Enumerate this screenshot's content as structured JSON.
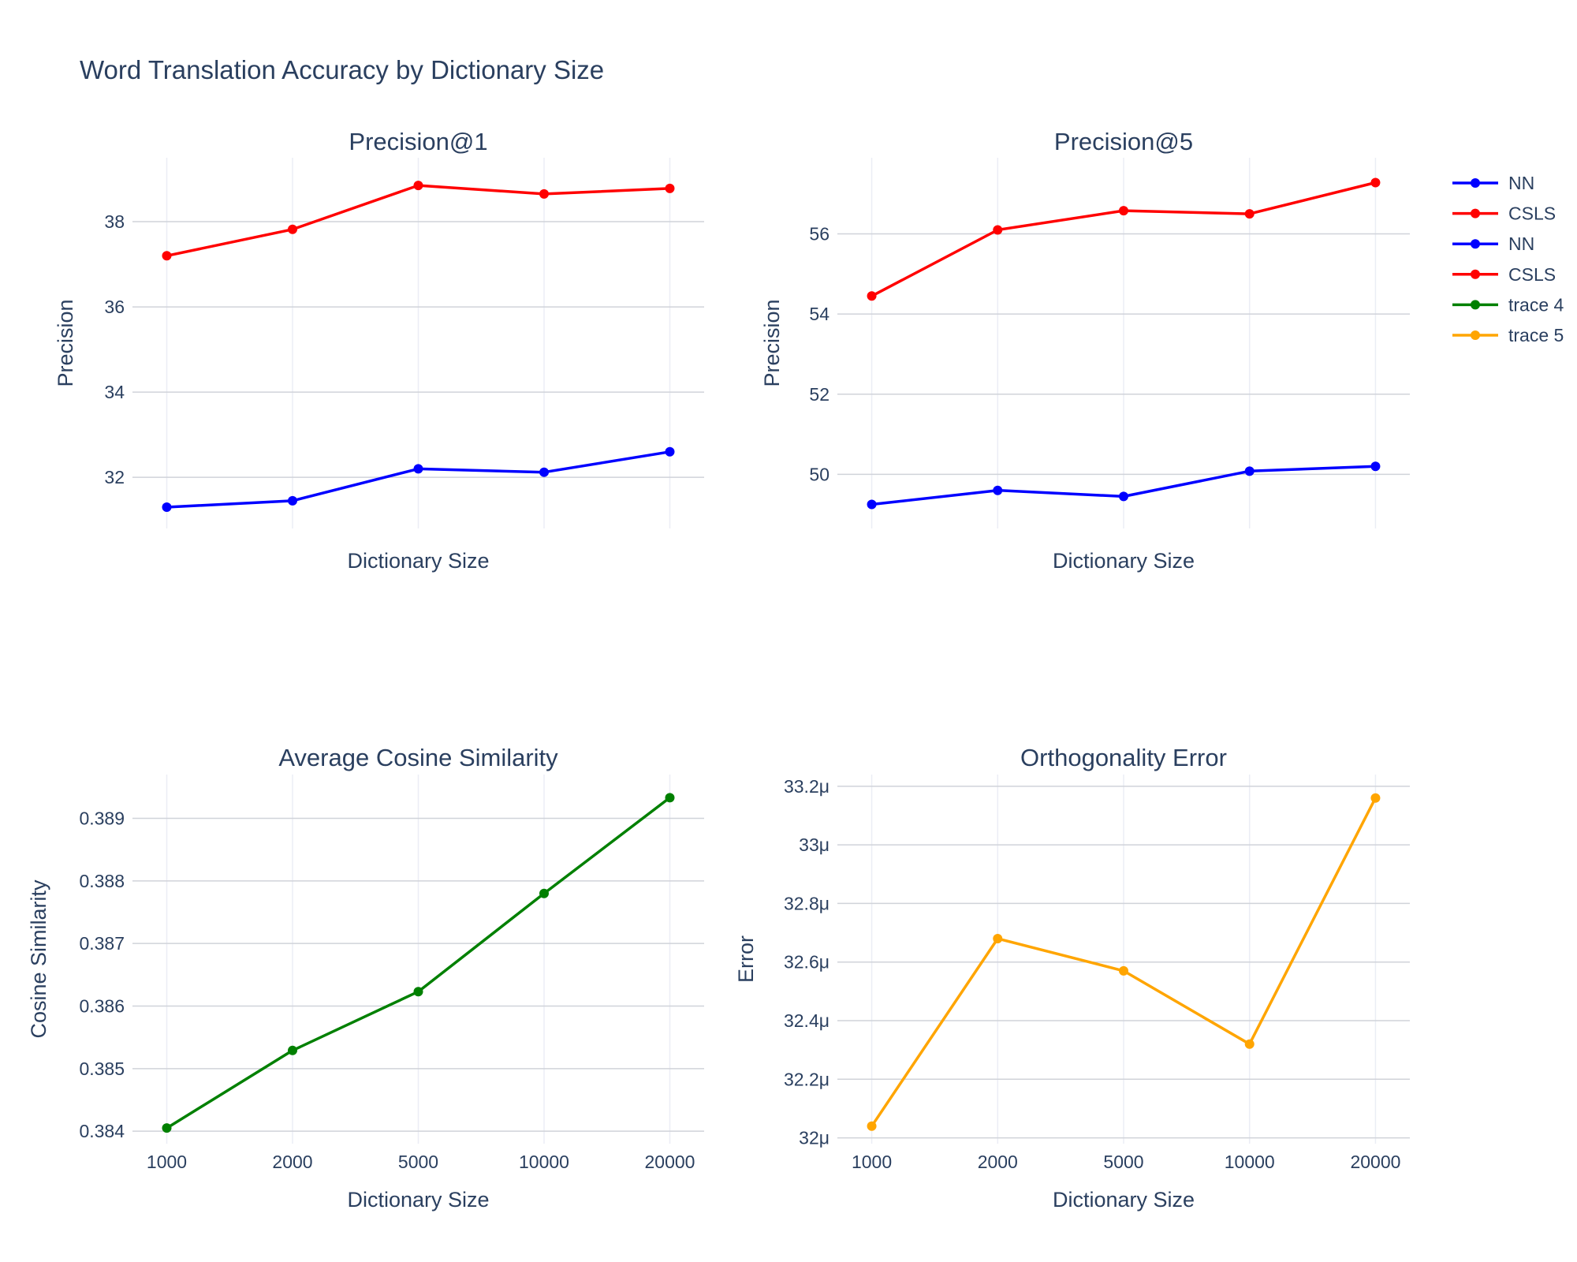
{
  "title": "Word Translation Accuracy by Dictionary Size",
  "colors": {
    "nn": "#0000ff",
    "csls": "#ff0000",
    "trace4": "#008000",
    "trace5": "#ffa500"
  },
  "legend": [
    {
      "name": "NN",
      "color": "#0000ff"
    },
    {
      "name": "CSLS",
      "color": "#ff0000"
    },
    {
      "name": "NN",
      "color": "#0000ff"
    },
    {
      "name": "CSLS",
      "color": "#ff0000"
    },
    {
      "name": "trace 4",
      "color": "#008000"
    },
    {
      "name": "trace 5",
      "color": "#ffa500"
    }
  ],
  "chart_data": [
    {
      "type": "line",
      "title": "Precision@1",
      "xlabel": "Dictionary Size",
      "ylabel": "Precision",
      "categories": [
        "1000",
        "2000",
        "5000",
        "10000",
        "20000"
      ],
      "show_x_ticks": false,
      "ylim": [
        30.8,
        39.5
      ],
      "yticks": [
        32,
        34,
        36,
        38
      ],
      "ytick_labels": [
        "32",
        "34",
        "36",
        "38"
      ],
      "series": [
        {
          "name": "NN",
          "color": "#0000ff",
          "values": [
            31.3,
            31.45,
            32.2,
            32.12,
            32.6
          ]
        },
        {
          "name": "CSLS",
          "color": "#ff0000",
          "values": [
            37.2,
            37.82,
            38.85,
            38.65,
            38.78
          ]
        }
      ]
    },
    {
      "type": "line",
      "title": "Precision@5",
      "xlabel": "Dictionary Size",
      "ylabel": "Precision",
      "categories": [
        "1000",
        "2000",
        "5000",
        "10000",
        "20000"
      ],
      "show_x_ticks": false,
      "ylim": [
        48.65,
        57.9
      ],
      "yticks": [
        50,
        52,
        54,
        56
      ],
      "ytick_labels": [
        "50",
        "52",
        "54",
        "56"
      ],
      "series": [
        {
          "name": "NN",
          "color": "#0000ff",
          "values": [
            49.25,
            49.6,
            49.45,
            50.08,
            50.2
          ]
        },
        {
          "name": "CSLS",
          "color": "#ff0000",
          "values": [
            54.45,
            56.1,
            56.58,
            56.5,
            57.28
          ]
        }
      ]
    },
    {
      "type": "line",
      "title": "Average Cosine Similarity",
      "xlabel": "Dictionary Size",
      "ylabel": "Cosine Similarity",
      "categories": [
        "1000",
        "2000",
        "5000",
        "10000",
        "20000"
      ],
      "show_x_ticks": true,
      "ylim": [
        0.3838,
        0.3897
      ],
      "yticks": [
        0.384,
        0.385,
        0.386,
        0.387,
        0.388,
        0.389
      ],
      "ytick_labels": [
        "0.384",
        "0.385",
        "0.386",
        "0.387",
        "0.388",
        "0.389"
      ],
      "series": [
        {
          "name": "trace 4",
          "color": "#008000",
          "values": [
            0.38405,
            0.38529,
            0.38623,
            0.3878,
            0.38933
          ]
        }
      ]
    },
    {
      "type": "line",
      "title": "Orthogonality Error",
      "xlabel": "Dictionary Size",
      "ylabel": "Error",
      "categories": [
        "1000",
        "2000",
        "5000",
        "10000",
        "20000"
      ],
      "show_x_ticks": true,
      "ylim": [
        31.98,
        33.24
      ],
      "yticks": [
        32,
        32.2,
        32.4,
        32.6,
        32.8,
        33,
        33.2
      ],
      "ytick_labels": [
        "32μ",
        "32.2μ",
        "32.4μ",
        "32.6μ",
        "32.8μ",
        "33μ",
        "33.2μ"
      ],
      "series": [
        {
          "name": "trace 5",
          "color": "#ffa500",
          "values": [
            32.04,
            32.68,
            32.57,
            32.32,
            33.16
          ]
        }
      ]
    }
  ]
}
